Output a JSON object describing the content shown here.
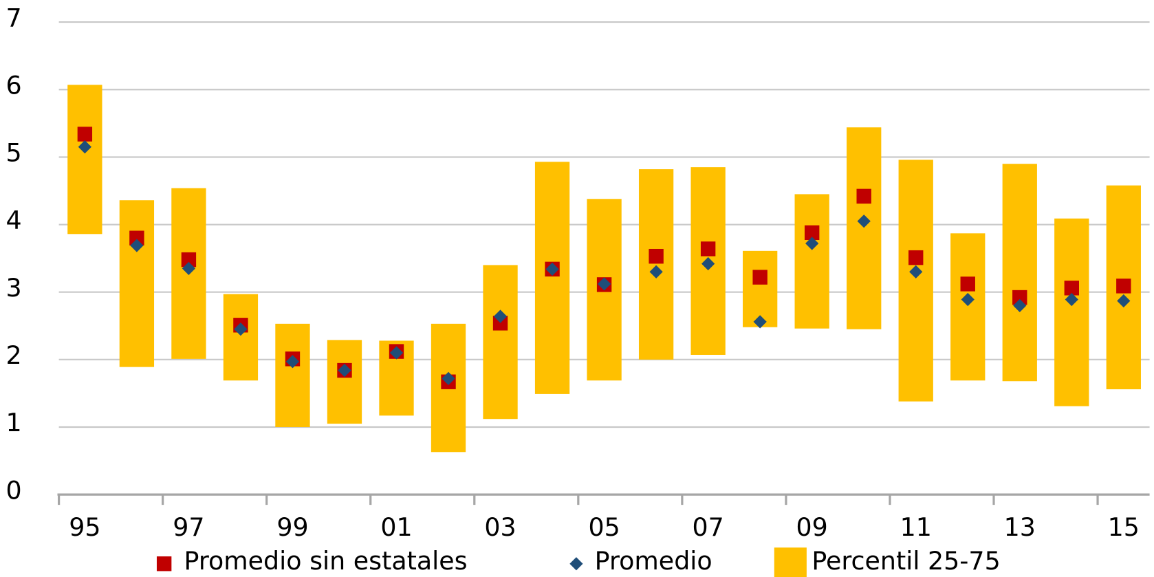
{
  "chart_data": {
    "type": "range_bar",
    "categories": [
      "95",
      null,
      "97",
      null,
      "99",
      null,
      "01",
      null,
      "03",
      null,
      "05",
      null,
      "07",
      null,
      "09",
      null,
      "11",
      null,
      "13",
      null,
      "15"
    ],
    "range": {
      "name": "Percentil 25-75",
      "color": "#ffc000",
      "low": [
        3.86,
        1.89,
        2.01,
        1.69,
        1.0,
        1.05,
        1.17,
        0.63,
        1.12,
        1.49,
        1.69,
        2.0,
        2.07,
        2.48,
        2.46,
        2.45,
        1.38,
        1.69,
        1.68,
        1.31,
        1.56
      ],
      "high": [
        6.07,
        4.36,
        4.54,
        2.97,
        2.53,
        2.29,
        2.28,
        2.53,
        3.4,
        4.93,
        4.38,
        4.82,
        4.85,
        3.61,
        4.45,
        5.44,
        4.96,
        3.87,
        4.9,
        4.09,
        4.58
      ]
    },
    "series": [
      {
        "name": "Promedio sin estatales",
        "color": "#c00000",
        "marker": "square",
        "values": [
          5.34,
          3.8,
          3.48,
          2.51,
          2.01,
          1.84,
          2.12,
          1.67,
          2.54,
          3.34,
          3.11,
          3.53,
          3.64,
          3.22,
          3.88,
          4.42,
          3.51,
          3.12,
          2.92,
          3.06,
          3.09
        ]
      },
      {
        "name": "Promedio",
        "color": "#1f4e79",
        "marker": "diamond",
        "values": [
          5.15,
          3.69,
          3.35,
          2.45,
          1.97,
          1.84,
          2.1,
          1.72,
          2.64,
          3.34,
          3.12,
          3.3,
          3.42,
          2.56,
          3.72,
          4.05,
          3.3,
          2.89,
          2.8,
          2.89,
          2.87
        ]
      }
    ],
    "ylim": [
      0,
      7
    ],
    "yticks": [
      0,
      1,
      2,
      3,
      4,
      5,
      6,
      7
    ],
    "grid": true
  }
}
